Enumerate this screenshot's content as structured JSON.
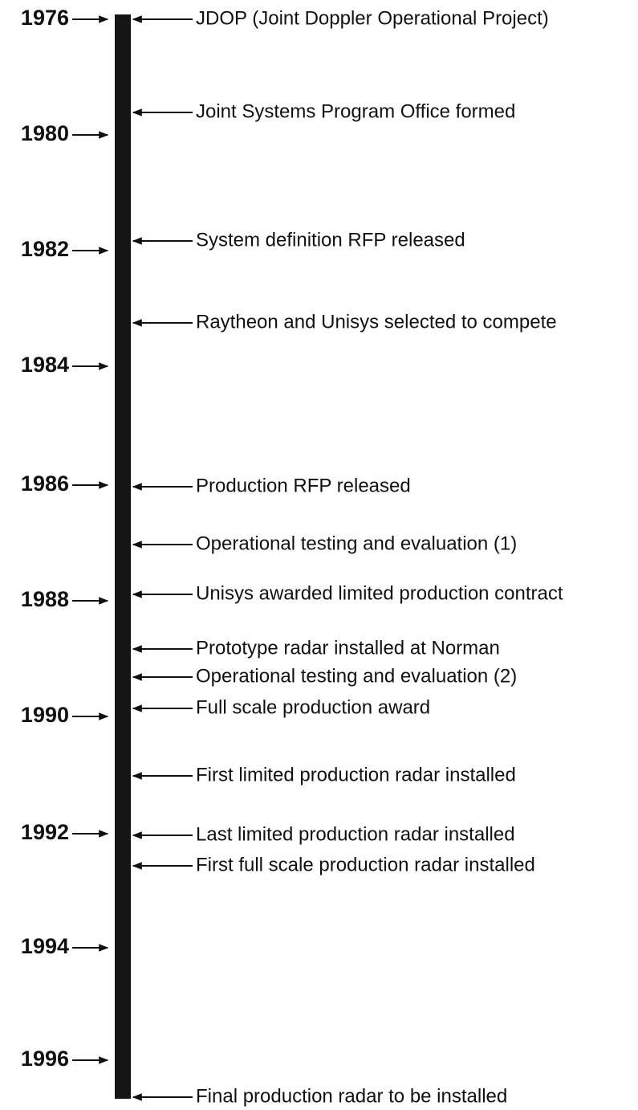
{
  "years": [
    "1976",
    "1980",
    "1982",
    "1984",
    "1986",
    "1988",
    "1990",
    "1992",
    "1994",
    "1996"
  ],
  "events": [
    "JDOP (Joint Doppler Operational Project)",
    "Joint Systems Program Office formed",
    "System definition RFP released",
    "Raytheon and Unisys selected to compete",
    "Production RFP released",
    "Operational testing and evaluation (1)",
    "Unisys awarded limited production contract",
    "Prototype radar installed at Norman",
    "Operational testing and evaluation (2)",
    "Full scale production award",
    "First limited production radar installed",
    "Last limited production radar installed",
    "First full scale production radar installed",
    "Final production radar to be installed"
  ]
}
